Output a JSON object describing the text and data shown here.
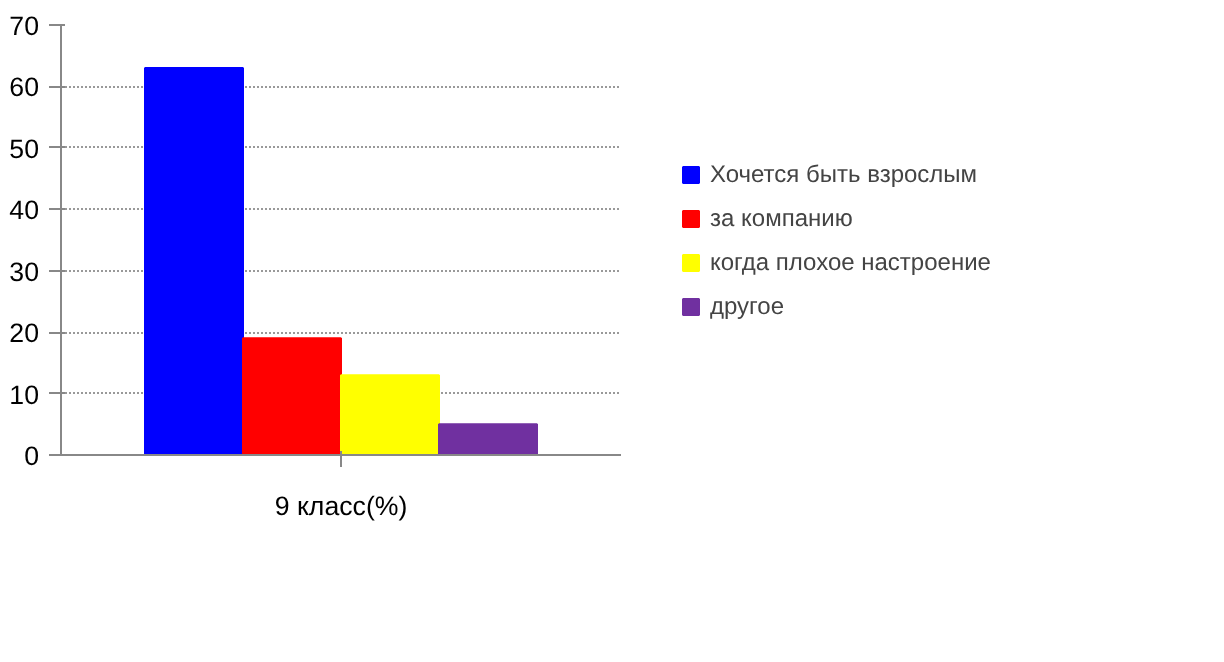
{
  "chart_data": {
    "type": "bar",
    "categories": [
      "9 класс(%)"
    ],
    "series": [
      {
        "name": "Хочется быть взрослым",
        "color": "#0000ff",
        "values": [
          63
        ]
      },
      {
        "name": "за компанию",
        "color": "#ff0000",
        "values": [
          19
        ]
      },
      {
        "name": "когда плохое настроение",
        "color": "#ffff00",
        "values": [
          13
        ]
      },
      {
        "name": "другое",
        "color": "#7030a0",
        "values": [
          5
        ]
      }
    ],
    "ylim": [
      0,
      70
    ],
    "yticks": [
      0,
      10,
      20,
      30,
      40,
      50,
      60,
      70
    ],
    "grid": "y",
    "legend": "right"
  }
}
